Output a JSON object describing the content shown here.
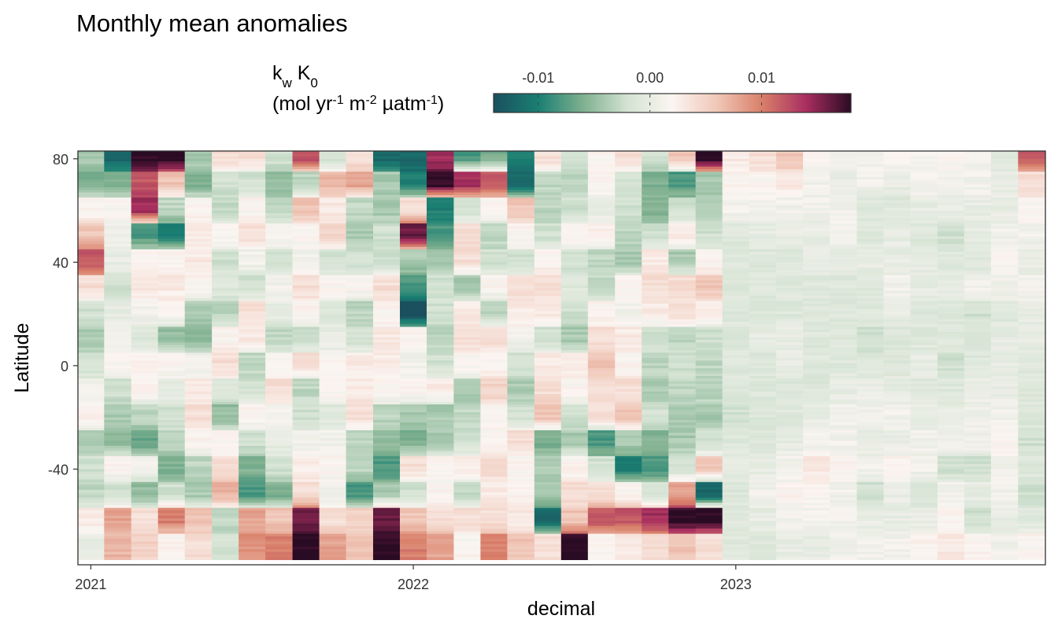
{
  "chart_data": {
    "type": "heatmap",
    "title": "Monthly mean anomalies",
    "xlabel": "decimal",
    "ylabel": "Latitude",
    "x_ticks": [
      "2021",
      "2022",
      "2023"
    ],
    "x_tick_values": [
      2021,
      2022,
      2023
    ],
    "xlim": [
      2020.96,
      2023.96
    ],
    "y_ticks": [
      "80",
      "40",
      "0",
      "-40"
    ],
    "y_tick_values": [
      80,
      40,
      0,
      -40
    ],
    "ylim": [
      -77,
      83
    ],
    "grid": false,
    "legend": {
      "placement": "top",
      "title_line1_main": "k",
      "title_line1_sub1": "w",
      "title_line1_main2": " K",
      "title_line1_sub2": "0",
      "title_line2_a": "(mol yr",
      "title_line2_sup1": "-1",
      "title_line2_b": " m",
      "title_line2_sup2": "-2",
      "title_line2_c": " µatm",
      "title_line2_sup3": "-1",
      "title_line2_d": ")",
      "ticks": [
        "-0.01",
        "0.00",
        "0.01"
      ],
      "tick_values": [
        -0.01,
        0.0,
        0.01
      ],
      "range": [
        -0.014,
        0.018
      ],
      "colors": [
        "#1b4f5f",
        "#1a7f72",
        "#7fb08f",
        "#d4e3d3",
        "#fbf5f2",
        "#f0c7b8",
        "#d9806a",
        "#a82e5f",
        "#2a0b24"
      ]
    },
    "months": [
      2021.0,
      2021.083,
      2021.167,
      2021.25,
      2021.333,
      2021.417,
      2021.5,
      2021.583,
      2021.667,
      2021.75,
      2021.833,
      2021.917,
      2022.0,
      2022.083,
      2022.167,
      2022.25,
      2022.333,
      2022.417,
      2022.5,
      2022.583,
      2022.667,
      2022.75,
      2022.833,
      2022.917,
      2023.0,
      2023.083,
      2023.167,
      2023.25,
      2023.333,
      2023.417,
      2023.5,
      2023.583,
      2023.667,
      2023.75,
      2023.833,
      2023.917
    ],
    "latitude_bands": [
      80,
      70,
      60,
      50,
      40,
      30,
      20,
      10,
      0,
      -10,
      -20,
      -30,
      -40,
      -50,
      -60,
      -70
    ],
    "values": [
      [
        -0.004,
        -0.006,
        0.002,
        0.006,
        0.012,
        0.004,
        -0.002,
        -0.004,
        -0.002,
        0.001,
        0.002,
        -0.004,
        -0.002,
        -0.003,
        0.003,
        0.0
      ],
      [
        -0.012,
        -0.006,
        0.002,
        0.001,
        0.0,
        -0.002,
        0.0,
        0.001,
        0.002,
        -0.002,
        -0.004,
        -0.005,
        0.002,
        -0.002,
        0.008,
        0.007
      ],
      [
        0.018,
        0.012,
        0.014,
        -0.008,
        0.002,
        0.003,
        0.001,
        -0.001,
        0.002,
        0.002,
        -0.003,
        -0.007,
        0.001,
        -0.005,
        0.004,
        0.005
      ],
      [
        0.018,
        0.006,
        -0.003,
        -0.01,
        0.002,
        0.003,
        0.002,
        -0.005,
        0.002,
        0.0,
        -0.002,
        -0.003,
        -0.006,
        -0.002,
        0.01,
        0.002
      ],
      [
        -0.004,
        -0.006,
        0.002,
        0.003,
        0.003,
        0.002,
        -0.004,
        -0.005,
        0.001,
        0.003,
        0.004,
        0.002,
        -0.003,
        -0.004,
        0.006,
        0.004
      ],
      [
        0.004,
        -0.002,
        -0.003,
        0.002,
        -0.002,
        -0.001,
        -0.003,
        0.002,
        0.004,
        -0.001,
        -0.005,
        0.002,
        0.004,
        0.007,
        -0.003,
        -0.002
      ],
      [
        0.004,
        -0.002,
        0.002,
        0.004,
        0.001,
        -0.002,
        0.004,
        0.003,
        -0.003,
        -0.002,
        0.002,
        -0.002,
        -0.006,
        -0.008,
        0.008,
        0.009
      ],
      [
        -0.002,
        -0.005,
        -0.003,
        0.002,
        -0.002,
        0.001,
        0.0,
        -0.003,
        0.002,
        0.004,
        0.001,
        0.0,
        -0.002,
        -0.006,
        0.006,
        0.01
      ],
      [
        0.012,
        -0.003,
        0.006,
        0.002,
        0.001,
        0.004,
        0.002,
        -0.003,
        0.004,
        -0.003,
        -0.002,
        0.001,
        0.003,
        0.004,
        0.016,
        0.018
      ],
      [
        -0.002,
        0.007,
        0.003,
        0.005,
        -0.002,
        0.002,
        -0.001,
        0.0,
        0.002,
        0.002,
        -0.001,
        0.001,
        0.002,
        0.001,
        0.004,
        0.008
      ],
      [
        0.004,
        0.008,
        -0.003,
        -0.004,
        -0.002,
        0.002,
        -0.003,
        -0.002,
        0.003,
        0.003,
        0.004,
        -0.003,
        -0.003,
        -0.008,
        0.005,
        0.006
      ],
      [
        -0.012,
        -0.004,
        -0.004,
        -0.002,
        -0.002,
        0.004,
        0.002,
        0.003,
        0.003,
        0.002,
        -0.003,
        -0.005,
        -0.008,
        -0.004,
        0.016,
        0.018
      ],
      [
        -0.012,
        -0.01,
        0.004,
        0.016,
        -0.004,
        -0.008,
        -0.014,
        0.002,
        0.001,
        0.002,
        -0.004,
        -0.006,
        0.004,
        -0.002,
        0.006,
        0.01
      ],
      [
        0.014,
        0.018,
        -0.01,
        -0.008,
        -0.004,
        -0.002,
        -0.002,
        -0.003,
        -0.002,
        0.003,
        -0.004,
        -0.004,
        0.002,
        0.002,
        0.004,
        0.008
      ],
      [
        -0.008,
        0.014,
        -0.002,
        0.004,
        0.004,
        -0.004,
        0.003,
        0.004,
        0.002,
        -0.004,
        -0.003,
        -0.002,
        0.003,
        -0.003,
        0.004,
        0.002
      ],
      [
        -0.006,
        0.012,
        0.002,
        -0.003,
        -0.002,
        0.002,
        -0.003,
        0.004,
        0.002,
        0.005,
        0.002,
        0.002,
        0.004,
        0.003,
        0.004,
        0.01
      ],
      [
        -0.01,
        -0.012,
        0.006,
        0.002,
        -0.002,
        0.004,
        0.003,
        0.001,
        -0.002,
        -0.004,
        -0.002,
        0.004,
        0.002,
        0.002,
        0.003,
        0.006
      ],
      [
        0.004,
        -0.003,
        -0.003,
        -0.002,
        0.002,
        0.004,
        0.003,
        -0.002,
        0.003,
        0.004,
        0.006,
        -0.006,
        -0.004,
        -0.004,
        -0.012,
        0.004
      ],
      [
        -0.002,
        -0.003,
        -0.002,
        0.002,
        -0.002,
        -0.001,
        -0.002,
        -0.004,
        0.003,
        0.002,
        -0.002,
        -0.004,
        0.002,
        0.004,
        0.006,
        0.018
      ],
      [
        0.002,
        0.002,
        0.0,
        0.003,
        -0.003,
        -0.003,
        0.002,
        0.004,
        0.006,
        0.004,
        0.004,
        -0.008,
        -0.002,
        0.004,
        0.012,
        0.002
      ],
      [
        0.004,
        -0.002,
        -0.002,
        -0.003,
        -0.004,
        0.002,
        0.001,
        0.003,
        0.002,
        0.004,
        0.006,
        -0.004,
        -0.01,
        0.002,
        0.012,
        0.003
      ],
      [
        -0.002,
        -0.006,
        -0.006,
        -0.002,
        0.003,
        0.004,
        0.003,
        -0.002,
        -0.003,
        -0.004,
        -0.002,
        -0.006,
        -0.008,
        -0.002,
        0.014,
        0.004
      ],
      [
        0.006,
        -0.008,
        -0.002,
        0.003,
        -0.004,
        0.004,
        0.004,
        -0.003,
        -0.002,
        -0.003,
        -0.004,
        -0.004,
        -0.002,
        0.008,
        0.018,
        0.006
      ],
      [
        0.018,
        -0.004,
        -0.004,
        -0.002,
        0.002,
        0.006,
        0.003,
        -0.002,
        -0.003,
        -0.003,
        -0.004,
        -0.002,
        0.006,
        -0.012,
        0.018,
        0.004
      ],
      [
        0.003,
        0.002,
        0.001,
        -0.001,
        -0.001,
        -0.001,
        -0.001,
        -0.001,
        -0.001,
        -0.001,
        -0.002,
        -0.001,
        0.0,
        -0.001,
        -0.001,
        -0.001
      ],
      [
        0.004,
        0.002,
        0.001,
        0.0,
        -0.001,
        -0.001,
        -0.001,
        0.0,
        -0.001,
        -0.001,
        -0.001,
        -0.001,
        0.0,
        0.001,
        0.0,
        -0.001
      ],
      [
        0.006,
        0.003,
        0.001,
        0.0,
        -0.001,
        -0.001,
        -0.001,
        0.0,
        0.0,
        -0.001,
        -0.001,
        0.0,
        0.001,
        0.002,
        0.001,
        0.0
      ],
      [
        0.002,
        0.001,
        0.001,
        0.0,
        0.0,
        -0.001,
        -0.001,
        -0.001,
        -0.001,
        -0.001,
        0.0,
        0.001,
        0.003,
        0.002,
        0.001,
        0.0
      ],
      [
        0.001,
        0.0,
        0.001,
        0.001,
        0.0,
        -0.001,
        -0.001,
        -0.001,
        -0.001,
        0.0,
        0.001,
        0.001,
        0.002,
        0.001,
        0.001,
        0.001
      ],
      [
        0.001,
        0.001,
        -0.001,
        -0.001,
        0.0,
        -0.001,
        -0.001,
        -0.002,
        -0.001,
        0.0,
        0.001,
        0.0,
        0.001,
        -0.002,
        0.0,
        0.001
      ],
      [
        0.002,
        0.0,
        -0.001,
        0.0,
        0.0,
        0.001,
        0.0,
        -0.001,
        -0.001,
        0.0,
        0.001,
        0.0,
        0.002,
        0.0,
        0.0,
        0.001
      ],
      [
        0.001,
        0.001,
        0.0,
        -0.001,
        0.0,
        0.0,
        -0.001,
        -0.001,
        0.0,
        -0.001,
        0.0,
        0.001,
        0.001,
        -0.002,
        0.0,
        0.002
      ],
      [
        0.002,
        0.001,
        0.0,
        -0.002,
        -0.001,
        0.0,
        -0.001,
        -0.001,
        -0.002,
        -0.001,
        0.0,
        0.001,
        -0.002,
        0.001,
        0.002,
        0.003
      ],
      [
        0.001,
        0.001,
        0.0,
        0.0,
        -0.001,
        0.001,
        -0.002,
        -0.001,
        -0.001,
        0.0,
        0.001,
        0.001,
        -0.002,
        0.0,
        -0.002,
        0.002
      ],
      [
        -0.001,
        0.0,
        0.0,
        0.001,
        0.002,
        0.001,
        -0.001,
        0.0,
        0.0,
        0.0,
        0.001,
        0.002,
        0.001,
        0.001,
        0.0,
        0.001
      ],
      [
        0.012,
        0.004,
        0.002,
        0.001,
        0.0,
        0.001,
        0.0,
        0.0,
        -0.001,
        -0.001,
        -0.001,
        -0.002,
        -0.001,
        -0.002,
        -0.001,
        0.002
      ]
    ]
  }
}
